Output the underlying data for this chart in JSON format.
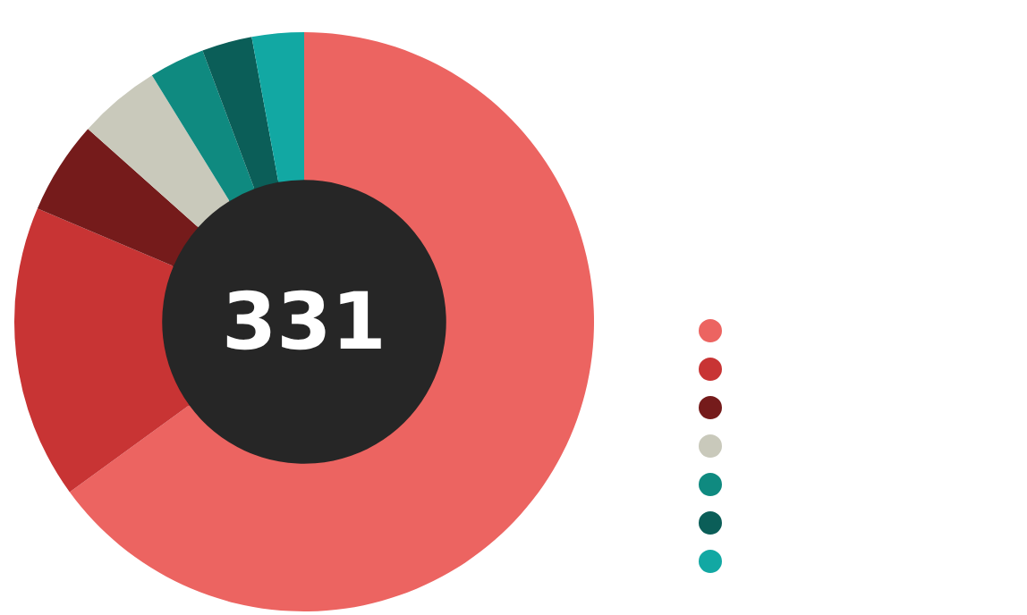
{
  "chart_data": {
    "type": "donut",
    "categories": [
      null,
      null,
      null,
      null,
      null,
      null,
      null
    ],
    "values": [
      65,
      16.4,
      5.2,
      4.6,
      3.1,
      2.8,
      2.9
    ],
    "colors": [
      "#ec6461",
      "#c83434",
      "#751b1b",
      "#c9c9bb",
      "#0f8a80",
      "#0b5e58",
      "#12a8a3"
    ],
    "annotations": [
      "331"
    ]
  }
}
